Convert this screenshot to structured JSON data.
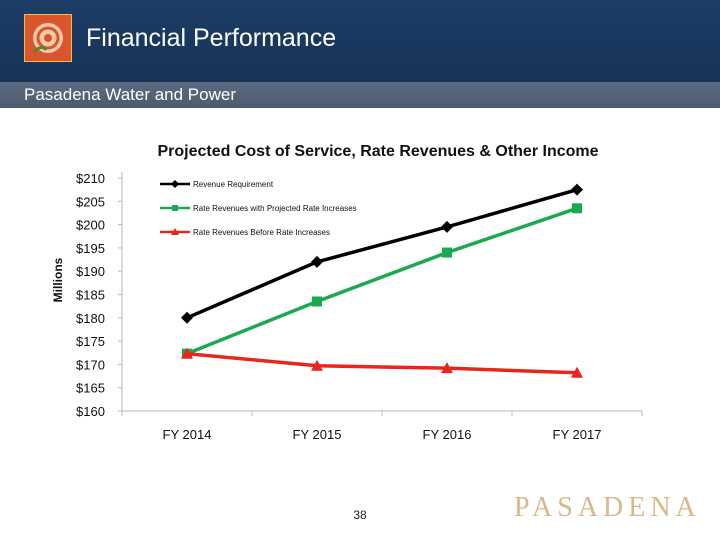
{
  "header": {
    "title": "Financial Performance",
    "subtitle": "Pasadena Water and Power",
    "logo_icon": "rose-logo-icon",
    "background_color": "#1b3a62"
  },
  "footer": {
    "page_number": "38",
    "brand": "PASADENA",
    "brand_color": "#d8b88a"
  },
  "chart_data": {
    "type": "line",
    "title": "Projected Cost of Service, Rate Revenues & Other Income",
    "xlabel": "",
    "ylabel": "Millions",
    "categories": [
      "FY 2014",
      "FY 2015",
      "FY 2016",
      "FY 2017"
    ],
    "ylim": [
      160,
      210
    ],
    "yticks": [
      160,
      165,
      170,
      175,
      180,
      185,
      190,
      195,
      200,
      205,
      210
    ],
    "ytick_labels": [
      "$160",
      "$165",
      "$170",
      "$175",
      "$180",
      "$185",
      "$190",
      "$195",
      "$200",
      "$205",
      "$210"
    ],
    "legend_position": "top-left",
    "series": [
      {
        "name": "Revenue Requirement",
        "values": [
          180.0,
          192.0,
          199.5,
          207.5
        ],
        "color": "#000000",
        "marker": "diamond"
      },
      {
        "name": "Rate Revenues with Projected Rate Increases",
        "values": [
          172.3,
          183.5,
          194.0,
          203.5
        ],
        "color": "#1aaa4e",
        "marker": "square"
      },
      {
        "name": "Rate Revenues Before Rate Increases",
        "values": [
          172.3,
          169.7,
          169.2,
          168.2
        ],
        "color": "#e8261c",
        "marker": "triangle"
      }
    ]
  }
}
